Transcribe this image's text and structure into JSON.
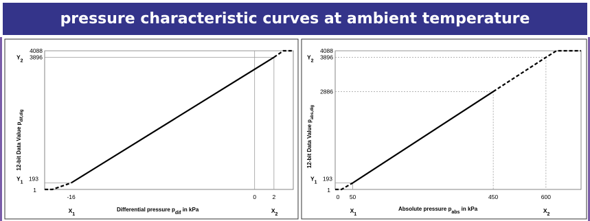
{
  "banner": {
    "title": "pressure characteristic curves at ambient temperature"
  },
  "colors": {
    "banner_bg": "#34348a",
    "line": "#000000",
    "guide": "#9a9a9a",
    "frame": "#7a5ca8"
  },
  "chart_data": [
    {
      "type": "line",
      "title": "",
      "xlabel": "Differential pressure p_dif in kPa",
      "ylabel": "12-bit Data Value p_dif,dig",
      "ylim": [
        1,
        4088
      ],
      "xlim": [
        -19,
        3.5
      ],
      "y_ticks": [
        "4088",
        "Y2 3896",
        "Y1 193",
        "1"
      ],
      "x_ticks": [
        "-16",
        "0",
        "2"
      ],
      "x_markers": [
        "X1",
        "X2"
      ],
      "series": [
        {
          "style": "dashed",
          "points": [
            [
              -19,
              1
            ],
            [
              -18.3,
              1
            ],
            [
              -16.6,
              193
            ]
          ]
        },
        {
          "style": "solid",
          "points": [
            [
              -16.6,
              193
            ],
            [
              1.75,
              3896
            ]
          ]
        },
        {
          "style": "dashed",
          "points": [
            [
              1.75,
              3896
            ],
            [
              2.6,
              4088
            ],
            [
              3.5,
              4088
            ]
          ]
        }
      ]
    },
    {
      "type": "line",
      "title": "",
      "xlabel": "Absolute pressure p_abs in kPa",
      "ylabel": "12-bit Data Value p_abs,dig",
      "ylim": [
        1,
        4088
      ],
      "xlim": [
        0,
        700
      ],
      "y_ticks": [
        "4088",
        "Y2 3896",
        "2886",
        "Y1 193",
        "1"
      ],
      "x_ticks": [
        "0",
        "50",
        "450",
        "600"
      ],
      "x_markers": [
        "X1",
        "X2"
      ],
      "series": [
        {
          "style": "dashed",
          "points": [
            [
              0,
              1
            ],
            [
              18,
              1
            ],
            [
              50,
              193
            ]
          ]
        },
        {
          "style": "solid",
          "points": [
            [
              50,
              193
            ],
            [
              450,
              2886
            ]
          ]
        },
        {
          "style": "dashed",
          "points": [
            [
              450,
              2886
            ],
            [
              600,
              3896
            ],
            [
              630,
              4088
            ],
            [
              700,
              4088
            ]
          ]
        }
      ]
    }
  ]
}
